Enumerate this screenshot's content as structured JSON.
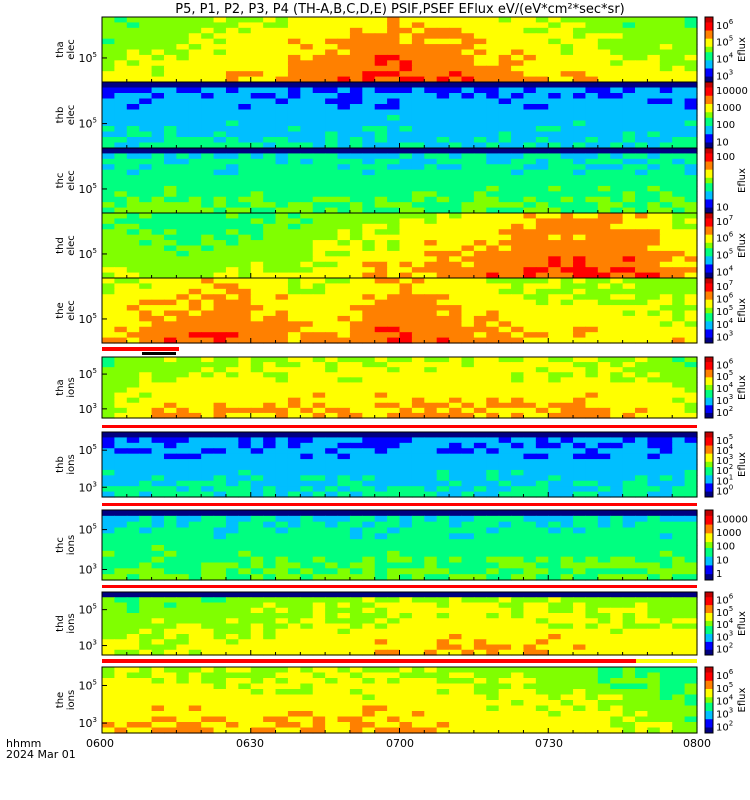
{
  "title": "P5, P1, P2, P3, P4 (TH-A,B,C,D,E) PSIF,PSEF EFlux eV/(eV*cm²*sec*sr)",
  "x_axis": {
    "ticks": [
      "0600",
      "0630",
      "0700",
      "0730",
      "0800"
    ],
    "label_line1": "hhmm",
    "label_line2": "2024 Mar 01"
  },
  "chart_data": {
    "type": "heatmap",
    "title": "P5, P1, P2, P3, P4 (TH-A,B,C,D,E) PSIF,PSEF EFlux eV/(eV*cm²*sec*sr)",
    "x_range": [
      "06:00",
      "08:00"
    ],
    "date": "2024 Mar 01",
    "colorbar_label": "Eflux",
    "panels": [
      {
        "label1": "tha",
        "label2": "elec",
        "yticks": [
          {
            "base": "10",
            "exp": "5"
          }
        ],
        "colorbar_ticks": [
          {
            "b": "10",
            "e": "6"
          },
          {
            "b": "10",
            "e": "5"
          },
          {
            "b": "10",
            "e": "4"
          },
          {
            "b": "10",
            "e": "3"
          }
        ],
        "show_cb_label": true,
        "range": [
          1000,
          1000000
        ],
        "profile": [
          [
            0,
            4
          ],
          [
            0.25,
            5
          ],
          [
            0.45,
            6
          ],
          [
            0.55,
            6
          ],
          [
            0.75,
            5
          ],
          [
            1,
            4
          ]
        ]
      },
      {
        "label1": "thb",
        "label2": "elec",
        "yticks": [
          {
            "base": "10",
            "exp": "5"
          }
        ],
        "colorbar_ticks": [
          {
            "b": "10000",
            "e": ""
          },
          {
            "b": "1000",
            "e": ""
          },
          {
            "b": "100",
            "e": ""
          },
          {
            "b": "10",
            "e": ""
          }
        ],
        "show_cb_label": false,
        "range": [
          10,
          10000
        ],
        "profile": [
          [
            0,
            2
          ],
          [
            1,
            2
          ]
        ]
      },
      {
        "label1": "thc",
        "label2": "elec",
        "yticks": [
          {
            "base": "10",
            "exp": "5"
          }
        ],
        "colorbar_ticks": [
          {
            "b": "100",
            "e": ""
          },
          {
            "b": "10",
            "e": ""
          }
        ],
        "show_cb_label": true,
        "range": [
          1,
          100
        ],
        "profile": [
          [
            0,
            3
          ],
          [
            1,
            3
          ]
        ]
      },
      {
        "label1": "thd",
        "label2": "elec",
        "yticks": [
          {
            "base": "10",
            "exp": "5"
          }
        ],
        "colorbar_ticks": [
          {
            "b": "10",
            "e": "7"
          },
          {
            "b": "10",
            "e": "6"
          },
          {
            "b": "10",
            "e": "5"
          },
          {
            "b": "10",
            "e": "4"
          }
        ],
        "show_cb_label": true,
        "range": [
          10000,
          10000000
        ],
        "profile": [
          [
            0,
            4
          ],
          [
            0.15,
            3.5
          ],
          [
            0.4,
            4.5
          ],
          [
            0.75,
            6
          ],
          [
            0.9,
            6
          ],
          [
            1,
            5
          ]
        ]
      },
      {
        "label1": "the",
        "label2": "elec",
        "yticks": [
          {
            "base": "10",
            "exp": "5"
          }
        ],
        "colorbar_ticks": [
          {
            "b": "10",
            "e": "7"
          },
          {
            "b": "10",
            "e": "6"
          },
          {
            "b": "10",
            "e": "5"
          },
          {
            "b": "10",
            "e": "4"
          },
          {
            "b": "10",
            "e": "3"
          }
        ],
        "show_cb_label": true,
        "range": [
          1000,
          10000000
        ],
        "profile": [
          [
            0,
            5
          ],
          [
            0.2,
            6
          ],
          [
            0.35,
            5
          ],
          [
            0.5,
            6
          ],
          [
            0.7,
            5
          ],
          [
            1,
            4.5
          ]
        ]
      },
      {
        "label1": "tha",
        "label2": "ions",
        "yticks": [
          {
            "base": "10",
            "exp": "5"
          },
          {
            "base": "10",
            "exp": "3"
          }
        ],
        "colorbar_ticks": [
          {
            "b": "10",
            "e": "6"
          },
          {
            "b": "10",
            "e": "5"
          },
          {
            "b": "10",
            "e": "4"
          },
          {
            "b": "10",
            "e": "3"
          },
          {
            "b": "10",
            "e": "2"
          }
        ],
        "show_cb_label": true,
        "range": [
          100,
          1000000
        ],
        "profile": [
          [
            0,
            4
          ],
          [
            0.1,
            5
          ],
          [
            0.5,
            5
          ],
          [
            0.9,
            5
          ],
          [
            1,
            4
          ]
        ]
      },
      {
        "label1": "thb",
        "label2": "ions",
        "yticks": [
          {
            "base": "10",
            "exp": "5"
          },
          {
            "base": "10",
            "exp": "3"
          }
        ],
        "colorbar_ticks": [
          {
            "b": "10",
            "e": "5"
          },
          {
            "b": "10",
            "e": "4"
          },
          {
            "b": "10",
            "e": "3"
          },
          {
            "b": "10",
            "e": "2"
          },
          {
            "b": "10",
            "e": "1"
          },
          {
            "b": "10",
            "e": "0"
          }
        ],
        "show_cb_label": true,
        "range": [
          1,
          100000
        ],
        "profile": [
          [
            0,
            2
          ],
          [
            1,
            2
          ]
        ]
      },
      {
        "label1": "thc",
        "label2": "ions",
        "yticks": [
          {
            "base": "10",
            "exp": "5"
          },
          {
            "base": "10",
            "exp": "3"
          }
        ],
        "colorbar_ticks": [
          {
            "b": "10000",
            "e": ""
          },
          {
            "b": "1000",
            "e": ""
          },
          {
            "b": "100",
            "e": ""
          },
          {
            "b": "10",
            "e": ""
          },
          {
            "b": "1",
            "e": ""
          }
        ],
        "show_cb_label": false,
        "range": [
          1,
          10000
        ],
        "profile": [
          [
            0,
            3
          ],
          [
            1,
            3
          ]
        ]
      },
      {
        "label1": "thd",
        "label2": "ions",
        "yticks": [
          {
            "base": "10",
            "exp": "5"
          },
          {
            "base": "10",
            "exp": "3"
          }
        ],
        "colorbar_ticks": [
          {
            "b": "10",
            "e": "6"
          },
          {
            "b": "10",
            "e": "5"
          },
          {
            "b": "10",
            "e": "4"
          },
          {
            "b": "10",
            "e": "3"
          },
          {
            "b": "10",
            "e": "2"
          }
        ],
        "show_cb_label": true,
        "range": [
          100,
          1000000
        ],
        "profile": [
          [
            0,
            4
          ],
          [
            0.3,
            4.5
          ],
          [
            0.6,
            5
          ],
          [
            1,
            4.5
          ]
        ]
      },
      {
        "label1": "the",
        "label2": "ions",
        "yticks": [
          {
            "base": "10",
            "exp": "5"
          },
          {
            "base": "10",
            "exp": "3"
          }
        ],
        "colorbar_ticks": [
          {
            "b": "10",
            "e": "6"
          },
          {
            "b": "10",
            "e": "5"
          },
          {
            "b": "10",
            "e": "4"
          },
          {
            "b": "10",
            "e": "3"
          },
          {
            "b": "10",
            "e": "2"
          }
        ],
        "show_cb_label": true,
        "range": [
          100,
          1000000
        ],
        "profile": [
          [
            0,
            5
          ],
          [
            0.5,
            5
          ],
          [
            0.8,
            4.5
          ],
          [
            1,
            3.5
          ]
        ]
      }
    ]
  },
  "colors": {
    "frame": "#000000",
    "background": "#ffffff",
    "status_red": "#ff0000",
    "status_yellow": "#ffff00",
    "status_black": "#000000",
    "palette": [
      "#000080",
      "#0000ff",
      "#00bfff",
      "#00ff80",
      "#80ff00",
      "#ffff00",
      "#ff8000",
      "#ff0000",
      "#c00000"
    ]
  }
}
